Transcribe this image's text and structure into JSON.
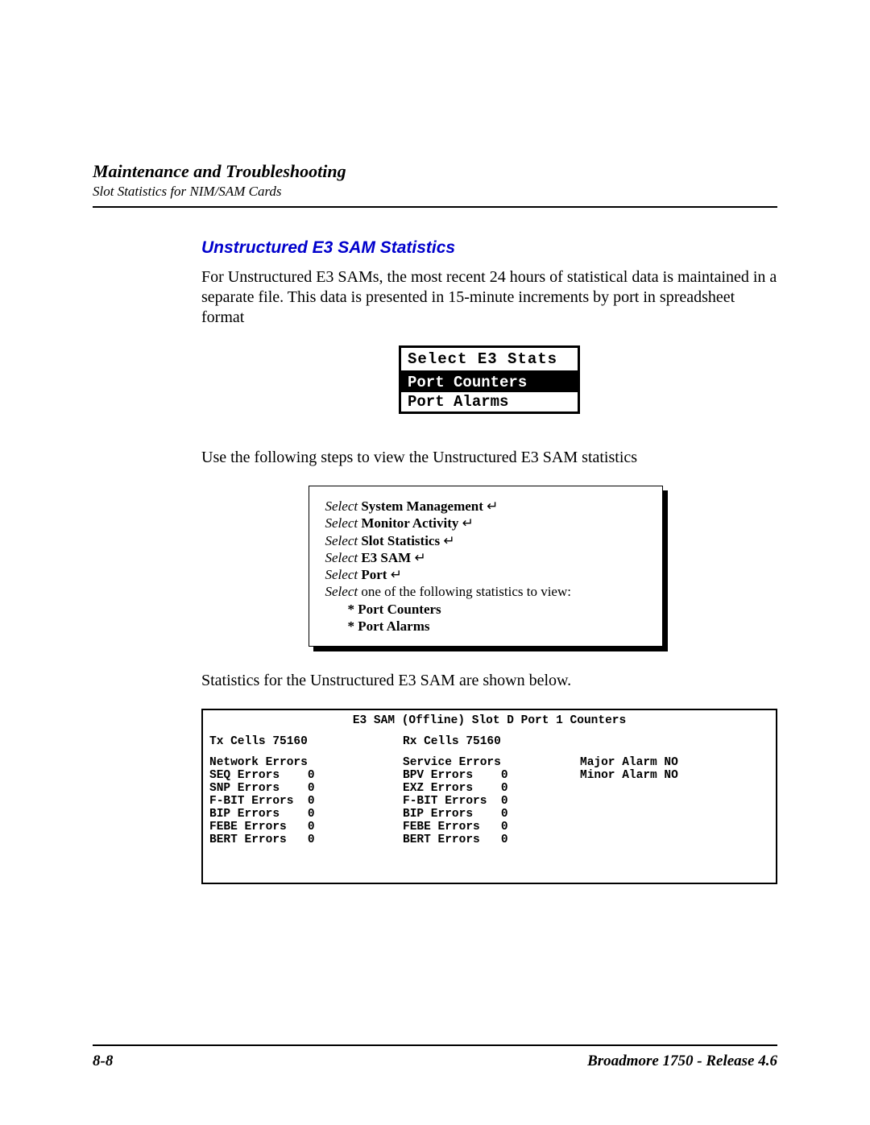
{
  "header": {
    "chapter": "Maintenance and Troubleshooting",
    "subsection": "Slot Statistics for NIM/SAM Cards"
  },
  "section": {
    "heading": "Unstructured E3 SAM Statistics",
    "intro": "For Unstructured E3 SAMs, the most recent 24 hours of statistical data is maintained in a separate file. This data is presented in 15-minute increments by port in spreadsheet format",
    "use_steps_text": "Use the following steps to view the Unstructured E3 SAM statistics",
    "stats_below_text": "Statistics for the Unstructured E3 SAM are shown below."
  },
  "menu_box": {
    "title": "Select E3 Stats",
    "items": [
      "Port Counters",
      "Port Alarms"
    ],
    "selected_index": 0,
    "border_color": "#000000",
    "background": "#ffffff",
    "font": "Courier New"
  },
  "steps_box": {
    "lines": [
      {
        "prefix": "Select",
        "bold": "System Management",
        "enter": true
      },
      {
        "prefix": "Select",
        "bold": "Monitor Activity",
        "enter": true
      },
      {
        "prefix": "Select",
        "bold": "Slot Statistics",
        "enter": true
      },
      {
        "prefix": "Select",
        "bold": "E3 SAM",
        "enter": true
      },
      {
        "prefix": "Select",
        "bold": "Port",
        "enter": true
      },
      {
        "prefix": "Select",
        "plain": "one of the following statistics to view:",
        "enter": false
      }
    ],
    "bullets": [
      "* Port Counters",
      "* Port Alarms"
    ],
    "border_color": "#000000",
    "shadow_color": "#000000",
    "background": "#ffffff"
  },
  "terminal": {
    "title": "E3 SAM (Offline) Slot D Port 1 Counters",
    "tx_label": "Tx Cells",
    "tx_value": "75160",
    "rx_label": "Rx Cells",
    "rx_value": "75160",
    "col1": {
      "header": "Network Errors",
      "rows": [
        {
          "label": "SEQ Errors",
          "value": "0"
        },
        {
          "label": "SNP Errors",
          "value": "0"
        },
        {
          "label": "F-BIT Errors",
          "value": "0"
        },
        {
          "label": "BIP Errors",
          "value": "0"
        },
        {
          "label": "FEBE Errors",
          "value": "0"
        },
        {
          "label": "BERT Errors",
          "value": "0"
        }
      ]
    },
    "col2": {
      "header": "Service Errors",
      "rows": [
        {
          "label": "BPV Errors",
          "value": "0"
        },
        {
          "label": "EXZ Errors",
          "value": "0"
        },
        {
          "label": "F-BIT Errors",
          "value": "0"
        },
        {
          "label": "BIP Errors",
          "value": "0"
        },
        {
          "label": "FEBE Errors",
          "value": "0"
        },
        {
          "label": "BERT Errors",
          "value": "0"
        }
      ]
    },
    "col3": {
      "rows": [
        {
          "label": "Major Alarm",
          "value": "NO"
        },
        {
          "label": "Minor Alarm",
          "value": "NO"
        }
      ]
    },
    "font": "Courier New",
    "border_color": "#000000",
    "background": "#ffffff"
  },
  "footer": {
    "page": "8-8",
    "doc": "Broadmore 1750 - Release 4.6"
  },
  "colors": {
    "heading_blue": "#0000cc",
    "text": "#000000",
    "background": "#ffffff"
  }
}
